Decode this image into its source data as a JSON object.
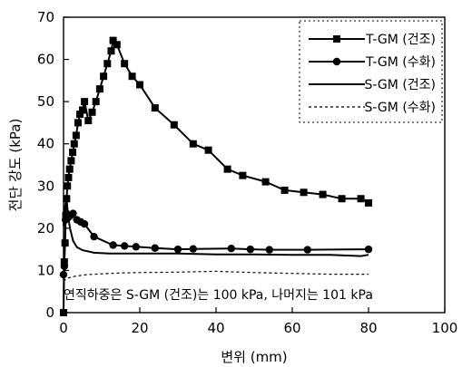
{
  "chart_data": {
    "type": "line",
    "xlabel": "변위 (mm)",
    "ylabel": "전단 강도 (kPa)",
    "xlim": [
      0,
      100
    ],
    "ylim": [
      0,
      70
    ],
    "xticks": [
      "0",
      "20",
      "40",
      "60",
      "80",
      "100"
    ],
    "yticks": [
      "0",
      "10",
      "20",
      "30",
      "40",
      "50",
      "60",
      "70"
    ],
    "grid": false,
    "legend_position": "top-right",
    "annotation": "연직하중은 S-GM (건조)는 100 kPa, 나머지는  101 kPa",
    "series": [
      {
        "name": "T-GM (건조)",
        "marker": "square",
        "style": "solid",
        "points": [
          [
            0,
            0
          ],
          [
            0.2,
            12
          ],
          [
            0.4,
            16.5
          ],
          [
            0.6,
            23
          ],
          [
            0.8,
            27
          ],
          [
            1,
            30
          ],
          [
            1.3,
            32
          ],
          [
            1.6,
            34
          ],
          [
            2,
            36
          ],
          [
            2.4,
            38
          ],
          [
            2.8,
            40
          ],
          [
            3.3,
            42
          ],
          [
            3.8,
            45
          ],
          [
            4.3,
            47
          ],
          [
            5,
            48
          ],
          [
            5.5,
            50
          ],
          [
            6.5,
            45.5
          ],
          [
            7.5,
            47.5
          ],
          [
            8.5,
            50
          ],
          [
            9.5,
            53
          ],
          [
            10.5,
            56
          ],
          [
            11.5,
            59
          ],
          [
            12.5,
            62
          ],
          [
            13,
            64.5
          ],
          [
            14,
            63.5
          ],
          [
            16,
            59
          ],
          [
            18,
            56
          ],
          [
            20,
            54
          ],
          [
            24,
            48.5
          ],
          [
            29,
            44.5
          ],
          [
            34,
            40
          ],
          [
            38,
            38.5
          ],
          [
            43,
            34
          ],
          [
            47,
            32.5
          ],
          [
            53,
            31
          ],
          [
            58,
            29
          ],
          [
            63,
            28.5
          ],
          [
            68,
            28
          ],
          [
            73,
            27
          ],
          [
            78,
            27
          ],
          [
            80,
            26
          ]
        ]
      },
      {
        "name": "T-GM (수화)",
        "marker": "circle",
        "style": "solid",
        "points": [
          [
            0,
            9
          ],
          [
            0.2,
            11
          ],
          [
            0.5,
            22
          ],
          [
            0.8,
            23.5
          ],
          [
            1.2,
            22.5
          ],
          [
            1.8,
            23
          ],
          [
            2.5,
            23.5
          ],
          [
            3.5,
            22
          ],
          [
            4.5,
            21.5
          ],
          [
            5.5,
            21
          ],
          [
            8,
            18
          ],
          [
            13,
            16
          ],
          [
            16,
            15.8
          ],
          [
            19,
            15.6
          ],
          [
            24,
            15.3
          ],
          [
            30,
            15
          ],
          [
            34,
            15.1
          ],
          [
            44,
            15.2
          ],
          [
            49,
            15
          ],
          [
            54,
            14.9
          ],
          [
            64,
            14.9
          ],
          [
            80,
            15
          ]
        ]
      },
      {
        "name": "S-GM (건조)",
        "marker": "none",
        "style": "solid",
        "points": [
          [
            0,
            20.5
          ],
          [
            0.3,
            25
          ],
          [
            0.8,
            27
          ],
          [
            1.2,
            23
          ],
          [
            1.7,
            20
          ],
          [
            2.5,
            17
          ],
          [
            3.5,
            15.5
          ],
          [
            5,
            14.8
          ],
          [
            8,
            14.2
          ],
          [
            12,
            14
          ],
          [
            20,
            14
          ],
          [
            30,
            14
          ],
          [
            40,
            13.8
          ],
          [
            50,
            13.8
          ],
          [
            60,
            13.7
          ],
          [
            70,
            13.7
          ],
          [
            78,
            13.4
          ],
          [
            80,
            13.7
          ]
        ]
      },
      {
        "name": "S-GM (수화)",
        "marker": "none",
        "style": "dashed",
        "points": [
          [
            0,
            7.5
          ],
          [
            1,
            8.2
          ],
          [
            3,
            8.6
          ],
          [
            6,
            9
          ],
          [
            10,
            9.2
          ],
          [
            15,
            9.4
          ],
          [
            20,
            9.5
          ],
          [
            30,
            9.6
          ],
          [
            40,
            9.8
          ],
          [
            50,
            9.5
          ],
          [
            60,
            9.3
          ],
          [
            70,
            9.1
          ],
          [
            80,
            9.1
          ]
        ]
      }
    ]
  }
}
